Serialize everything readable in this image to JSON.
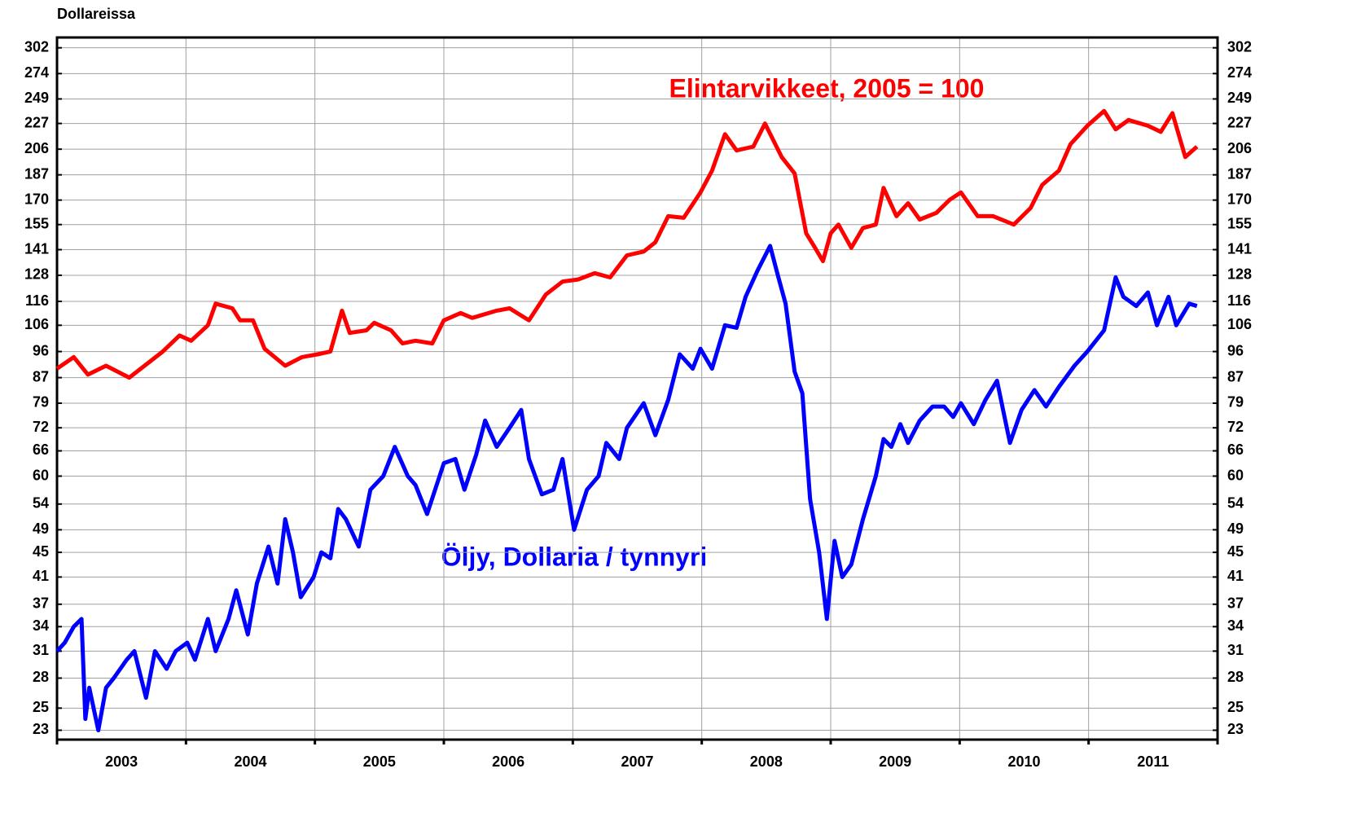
{
  "chart_data": {
    "type": "line",
    "y_unit_label": "Dollareissa",
    "annotations": [
      "Elintarvikkeet, 2005 = 100",
      "Öljy, Dollaria / tynnyri"
    ],
    "xlim": [
      2003,
      2012
    ],
    "xtick_marks": [
      2003,
      2004,
      2005,
      2006,
      2007,
      2008,
      2009,
      2010,
      2011,
      2012
    ],
    "xticks": [
      {
        "value": 2003.5,
        "label": "2003"
      },
      {
        "value": 2004.5,
        "label": "2004"
      },
      {
        "value": 2005.5,
        "label": "2005"
      },
      {
        "value": 2006.5,
        "label": "2006"
      },
      {
        "value": 2007.5,
        "label": "2007"
      },
      {
        "value": 2008.5,
        "label": "2008"
      },
      {
        "value": 2009.5,
        "label": "2009"
      },
      {
        "value": 2010.5,
        "label": "2010"
      },
      {
        "value": 2011.5,
        "label": "2011"
      }
    ],
    "ylim": [
      22.2,
      314
    ],
    "log_scale": true,
    "grid": true,
    "yticks": [
      23,
      25,
      28,
      31,
      34,
      37,
      41,
      45,
      49,
      54,
      60,
      66,
      72,
      79,
      87,
      96,
      106,
      116,
      128,
      141,
      155,
      170,
      187,
      206,
      227,
      249,
      274,
      302
    ],
    "series": [
      {
        "name": "Elintarvikkeet, 2005 = 100",
        "color": "#ff0000",
        "x": [
          2003.0,
          2003.13,
          2003.24,
          2003.38,
          2003.56,
          2003.82,
          2003.95,
          2004.04,
          2004.17,
          2004.23,
          2004.36,
          2004.42,
          2004.52,
          2004.61,
          2004.77,
          2004.9,
          2005.02,
          2005.12,
          2005.21,
          2005.27,
          2005.4,
          2005.46,
          2005.59,
          2005.68,
          2005.78,
          2005.91,
          2006.0,
          2006.13,
          2006.22,
          2006.41,
          2006.51,
          2006.66,
          2006.79,
          2006.92,
          2007.04,
          2007.17,
          2007.29,
          2007.42,
          2007.55,
          2007.64,
          2007.74,
          2007.86,
          2007.99,
          2008.08,
          2008.18,
          2008.27,
          2008.4,
          2008.49,
          2008.62,
          2008.72,
          2008.81,
          2008.87,
          2008.94,
          2009.0,
          2009.06,
          2009.16,
          2009.25,
          2009.35,
          2009.41,
          2009.51,
          2009.6,
          2009.69,
          2009.82,
          2009.92,
          2010.01,
          2010.14,
          2010.26,
          2010.42,
          2010.55,
          2010.64,
          2010.77,
          2010.86,
          2010.99,
          2011.12,
          2011.21,
          2011.31,
          2011.46,
          2011.56,
          2011.65,
          2011.75,
          2011.84
        ],
        "values": [
          90,
          94,
          88,
          91,
          87,
          96,
          102,
          100,
          106,
          115,
          113,
          108,
          108,
          97,
          91,
          94,
          95,
          96,
          112,
          103,
          104,
          107,
          104,
          99,
          100,
          99,
          108,
          111,
          109,
          112,
          113,
          108,
          119,
          125,
          126,
          129,
          127,
          138,
          140,
          145,
          160,
          159,
          175,
          190,
          218,
          205,
          208,
          227,
          200,
          188,
          150,
          143,
          135,
          150,
          155,
          142,
          153,
          155,
          178,
          160,
          168,
          158,
          162,
          170,
          175,
          160,
          160,
          155,
          165,
          180,
          190,
          210,
          225,
          238,
          222,
          230,
          225,
          220,
          236,
          200,
          208
        ]
      },
      {
        "name": "Öljy, Dollaria / tynnyri",
        "color": "#0000ff",
        "x": [
          2003.0,
          2003.06,
          2003.13,
          2003.19,
          2003.22,
          2003.25,
          2003.32,
          2003.38,
          2003.44,
          2003.54,
          2003.6,
          2003.69,
          2003.76,
          2003.85,
          2003.92,
          2004.01,
          2004.07,
          2004.17,
          2004.23,
          2004.33,
          2004.39,
          2004.48,
          2004.55,
          2004.64,
          2004.71,
          2004.77,
          2004.83,
          2004.89,
          2004.99,
          2005.05,
          2005.12,
          2005.18,
          2005.24,
          2005.34,
          2005.43,
          2005.53,
          2005.62,
          2005.72,
          2005.78,
          2005.87,
          2006.0,
          2006.09,
          2006.16,
          2006.25,
          2006.32,
          2006.41,
          2006.51,
          2006.6,
          2006.66,
          2006.76,
          2006.85,
          2006.92,
          2007.01,
          2007.11,
          2007.2,
          2007.26,
          2007.36,
          2007.42,
          2007.55,
          2007.64,
          2007.74,
          2007.83,
          2007.93,
          2007.99,
          2008.08,
          2008.18,
          2008.27,
          2008.34,
          2008.43,
          2008.53,
          2008.59,
          2008.65,
          2008.72,
          2008.78,
          2008.84,
          2008.91,
          2008.97,
          2009.03,
          2009.09,
          2009.16,
          2009.25,
          2009.35,
          2009.41,
          2009.47,
          2009.54,
          2009.6,
          2009.69,
          2009.79,
          2009.88,
          2009.95,
          2010.01,
          2010.11,
          2010.2,
          2010.29,
          2010.39,
          2010.48,
          2010.58,
          2010.67,
          2010.77,
          2010.89,
          2010.99,
          2011.12,
          2011.21,
          2011.27,
          2011.37,
          2011.46,
          2011.53,
          2011.62,
          2011.68,
          2011.78,
          2011.84
        ],
        "values": [
          31,
          32,
          34,
          35,
          24,
          27,
          23,
          27,
          28,
          30,
          31,
          26,
          31,
          29,
          31,
          32,
          30,
          35,
          31,
          35,
          39,
          33,
          40,
          46,
          40,
          51,
          45,
          38,
          41,
          45,
          44,
          53,
          51,
          46,
          57,
          60,
          67,
          60,
          58,
          52,
          63,
          64,
          57,
          65,
          74,
          67,
          72,
          77,
          64,
          56,
          57,
          64,
          49,
          57,
          60,
          68,
          64,
          72,
          79,
          70,
          80,
          95,
          90,
          97,
          90,
          106,
          105,
          118,
          130,
          143,
          128,
          115,
          89,
          82,
          55,
          45,
          35,
          47,
          41,
          43,
          51,
          60,
          69,
          67,
          73,
          68,
          74,
          78,
          78,
          75,
          79,
          73,
          80,
          86,
          68,
          77,
          83,
          78,
          84,
          91,
          96,
          104,
          127,
          118,
          114,
          120,
          106,
          118,
          106,
          115,
          114
        ]
      }
    ]
  }
}
